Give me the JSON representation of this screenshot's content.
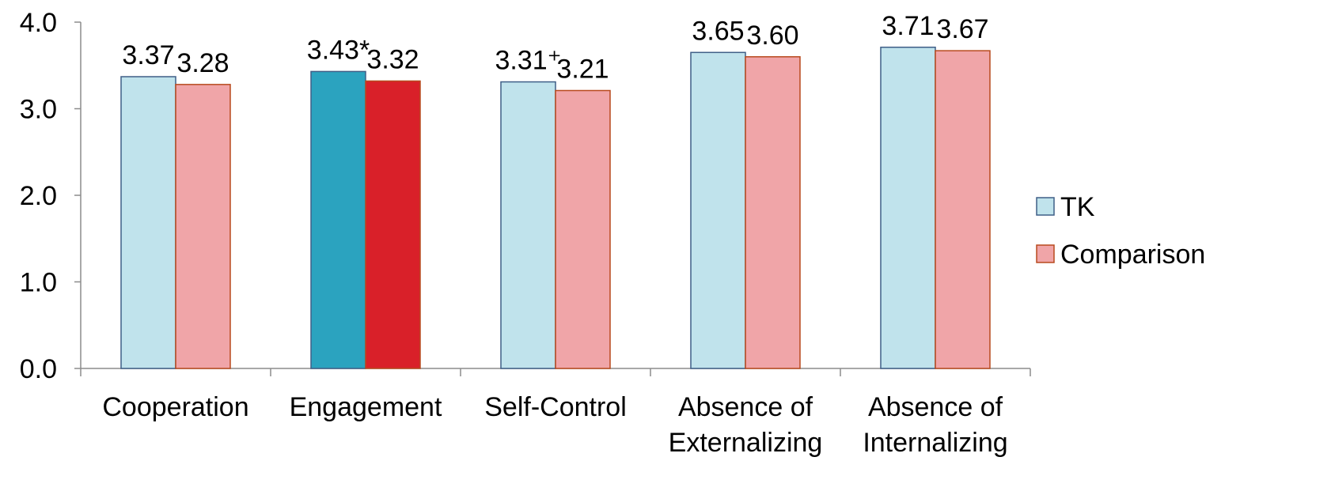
{
  "chart_data": {
    "type": "bar",
    "categories": [
      [
        "Cooperation"
      ],
      [
        "Engagement"
      ],
      [
        "Self-Control"
      ],
      [
        "Absence of",
        "Externalizing"
      ],
      [
        "Absence of",
        "Internalizing"
      ]
    ],
    "series": [
      {
        "name": "TK",
        "values": [
          3.37,
          3.43,
          3.31,
          3.65,
          3.71
        ],
        "labels": [
          "3.37",
          "3.43*",
          "3.31⁺",
          "3.65",
          "3.71"
        ],
        "fill": "#c0e3ec",
        "stroke": "#3f5f87"
      },
      {
        "name": "Comparison",
        "values": [
          3.28,
          3.32,
          3.21,
          3.6,
          3.67
        ],
        "labels": [
          "3.28",
          "3.32",
          "3.21",
          "3.60",
          "3.67"
        ],
        "fill": "#f0a5a8",
        "stroke": "#b84a1e"
      }
    ],
    "highlight": {
      "category_index": 1,
      "colors": [
        "#2ba3bf",
        "#d92029"
      ]
    },
    "ylim": [
      0,
      4
    ],
    "yticks": [
      "0.0",
      "1.0",
      "2.0",
      "3.0",
      "4.0"
    ],
    "ytick_values": [
      0,
      1,
      2,
      3,
      4
    ],
    "grid": false,
    "legend_position": "right",
    "title": "",
    "xlabel": "",
    "ylabel": ""
  }
}
